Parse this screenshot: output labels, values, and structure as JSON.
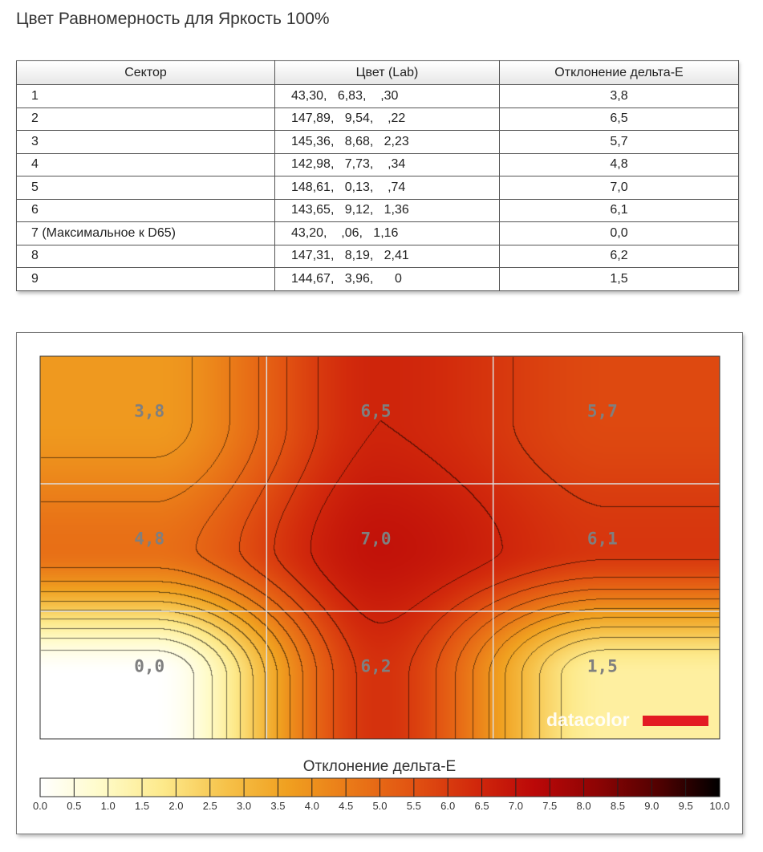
{
  "page": {
    "title": "Цвет Равномерность для Яркость 100%"
  },
  "table": {
    "headers": [
      "Сектор",
      "Цвет (Lab)",
      "Отклонение дельта-E"
    ],
    "rows": [
      {
        "sector": "1",
        "lab": "43,30,   6,83,    ,30",
        "de": "3,8"
      },
      {
        "sector": "2",
        "lab": "147,89,   9,54,    ,22",
        "de": "6,5"
      },
      {
        "sector": "3",
        "lab": "145,36,   8,68,   2,23",
        "de": "5,7"
      },
      {
        "sector": "4",
        "lab": "142,98,   7,73,    ,34",
        "de": "4,8"
      },
      {
        "sector": "5",
        "lab": "148,61,   0,13,    ,74",
        "de": "7,0"
      },
      {
        "sector": "6",
        "lab": "143,65,   9,12,   1,36",
        "de": "6,1"
      },
      {
        "sector": "7 (Максимальное к D65)",
        "lab": "43,20,    ,06,   1,16",
        "de": "0,0"
      },
      {
        "sector": "8",
        "lab": "147,31,   8,19,   2,41",
        "de": "6,2"
      },
      {
        "sector": "9",
        "lab": "144,67,   3,96,      0",
        "de": "1,5"
      }
    ]
  },
  "chart_data": {
    "type": "heatmap",
    "grid": {
      "rows": 3,
      "cols": 3
    },
    "values": [
      [
        3.8,
        6.5,
        5.7
      ],
      [
        4.8,
        7.0,
        6.1
      ],
      [
        0.0,
        6.2,
        1.5
      ]
    ],
    "cell_labels": [
      [
        "3,8",
        "6,5",
        "5,7"
      ],
      [
        "4,8",
        "7,0",
        "6,1"
      ],
      [
        "0,0",
        "6,2",
        "1,5"
      ]
    ],
    "colorbar": {
      "title": "Отклонение дельта-E",
      "min": 0,
      "max": 10,
      "ticks": [
        "0.0",
        "0.5",
        "1.0",
        "1.5",
        "2.0",
        "2.5",
        "3.0",
        "3.5",
        "4.0",
        "4.5",
        "5.0",
        "5.5",
        "6.0",
        "6.5",
        "7.0",
        "7.5",
        "8.0",
        "8.5",
        "9.0",
        "9.5",
        "10.0"
      ]
    },
    "gridlines": true,
    "contours": true
  },
  "watermark": {
    "text": "datacolor",
    "bar_color": "#e31b23"
  },
  "colors": {
    "scale": [
      "#ffffff",
      "#fffbc8",
      "#fde98a",
      "#f6c24a",
      "#f0a020",
      "#ea7a18",
      "#e25412",
      "#d22a0c",
      "#bb0808",
      "#8e0404",
      "#520101",
      "#000000"
    ],
    "cell_text": "#7f7f7f",
    "grid_line": "#dddddd"
  }
}
